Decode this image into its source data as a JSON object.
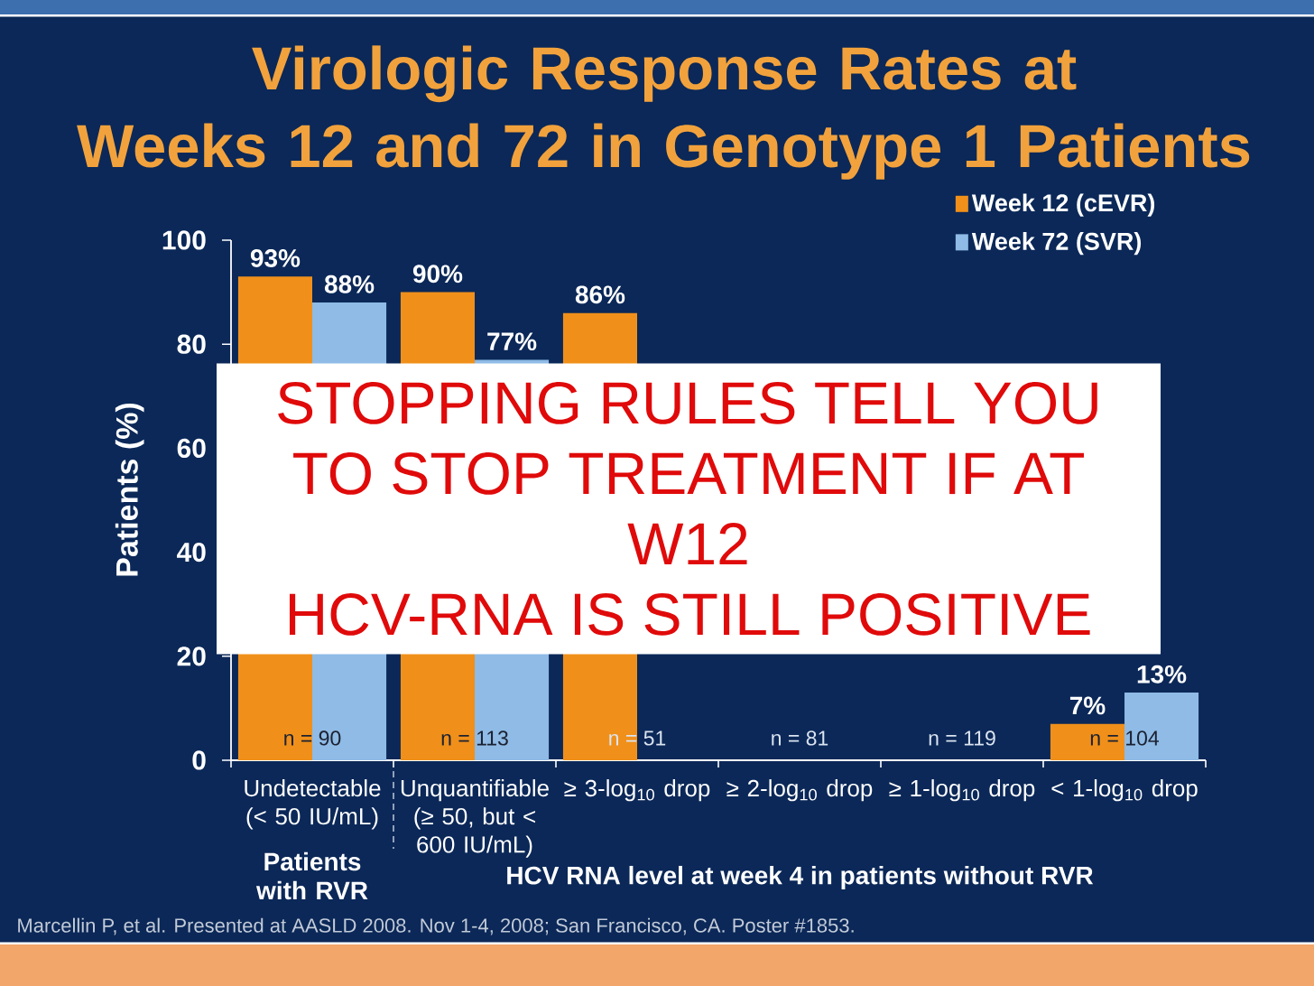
{
  "chart_data": {
    "type": "bar",
    "title": "Virologic Response Rates at Weeks 12 and 72 in Genotype 1 Patients",
    "ylabel": "Patients (%)",
    "categories": [
      "Undetectable (< 50 IU/mL)",
      "Unquantifiable (≥ 50, but < 600 IU/mL)",
      "≥ 3-log$_{10}$ drop",
      "≥ 2-log$_{10}$ drop",
      "≥ 1-log$_{10}$ drop",
      "< 1-log$_{10}$ drop"
    ],
    "series": [
      {
        "name": "Week 12 (cEVR)",
        "color": "#f0901a",
        "values": [
          93,
          90,
          86,
          null,
          null,
          7
        ],
        "value_labels": [
          "93%",
          "90%",
          "86%",
          null,
          null,
          "7%"
        ]
      },
      {
        "name": "Week 72 (SVR)",
        "color": "#8fbbe6",
        "values": [
          88,
          77,
          null,
          null,
          null,
          13
        ],
        "value_labels": [
          "88%",
          "77%",
          null,
          null,
          null,
          "13%"
        ]
      }
    ],
    "ylim": [
      0,
      100
    ],
    "yticks": [
      0,
      20,
      40,
      60,
      80,
      100
    ],
    "legend": "top right",
    "annotations": [
      "n = 90",
      "n = 113",
      "n = 51",
      "n = 81",
      "n = 119",
      "n = 104",
      "Patients with RVR",
      "HCV RNA level at week 4 in patients without RVR",
      "STOPPING RULES TELL YOU TO STOP TREATMENT IF AT W12",
      "HCV-RNA IS STILL POSITIVE",
      "Marcellin P, et al. Presented at AASLD 2008. Nov 1-4, 2008; San Francisco, CA. Poster #1853."
    ]
  }
}
